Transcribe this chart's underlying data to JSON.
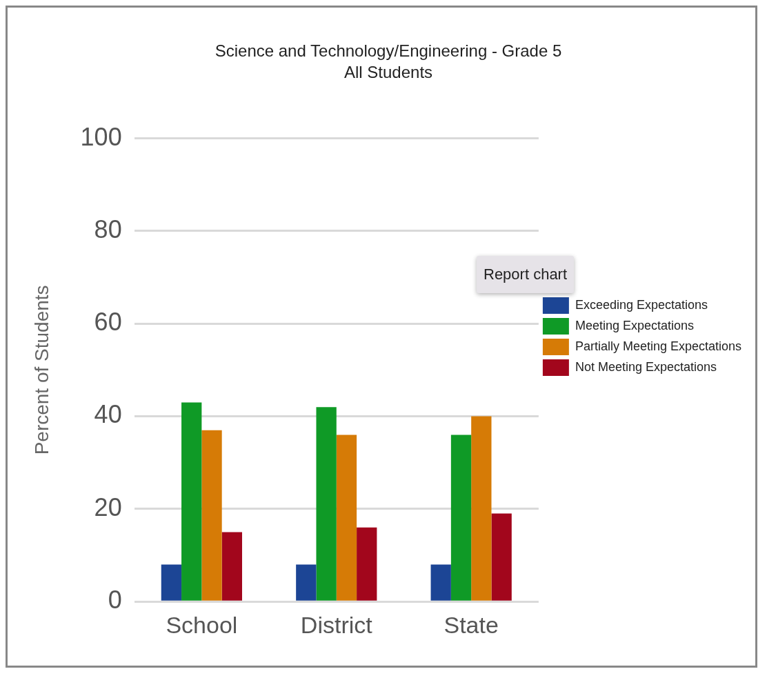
{
  "chart_data": {
    "type": "bar",
    "title": "Science and Technology/Engineering - Grade 5",
    "subtitle": "All Students",
    "ylabel": "Percent of Students",
    "categories": [
      "School",
      "District",
      "State"
    ],
    "series": [
      {
        "name": "Exceeding Expectations",
        "color": "#1c4595",
        "values": [
          8,
          8,
          8
        ]
      },
      {
        "name": "Meeting Expectations",
        "color": "#0f9a26",
        "values": [
          43,
          42,
          36
        ]
      },
      {
        "name": "Partially Meeting Expectations",
        "color": "#d67b06",
        "values": [
          37,
          36,
          40
        ]
      },
      {
        "name": "Not Meeting Expectations",
        "color": "#a2061c",
        "values": [
          15,
          16,
          19
        ]
      }
    ],
    "ylim": [
      0,
      100
    ],
    "yticks": [
      0,
      20,
      40,
      60,
      80,
      100
    ],
    "grid": "y",
    "legend": "right",
    "annotations": [
      "Report chart"
    ]
  }
}
